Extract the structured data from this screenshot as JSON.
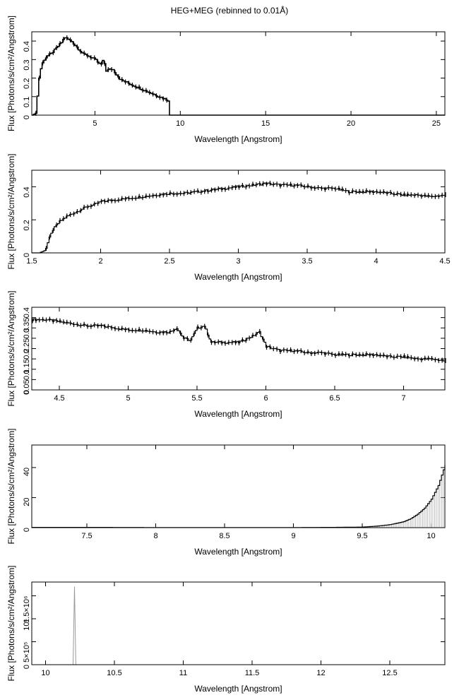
{
  "figure": {
    "title": "HEG+MEG (rebinned to 0.01Å)"
  },
  "chart_data": [
    {
      "type": "line",
      "xlabel": "Wavelength [Angstrom]",
      "ylabel": "Flux [Photons/s/cm²/Angstrom]",
      "xlim": [
        1.3,
        25.5
      ],
      "ylim": [
        0,
        0.45
      ],
      "xticks": [
        5,
        10,
        15,
        20,
        25
      ],
      "xtick_labels": [
        "5",
        "10",
        "15",
        "20",
        "25"
      ],
      "yticks": [
        0,
        0.1,
        0.2,
        0.3,
        0.4
      ],
      "ytick_labels": [
        "0",
        "0.1",
        "0.2",
        "0.3",
        "0.4"
      ],
      "grid": false,
      "series": [
        {
          "x": [
            1.35,
            1.45,
            1.55,
            1.6,
            1.7,
            1.8,
            1.9,
            2.0,
            2.2,
            2.4,
            2.6,
            2.8,
            3.0,
            3.2,
            3.4,
            3.6,
            3.8,
            4.0,
            4.3,
            4.6,
            5.0,
            5.3,
            5.5,
            5.6,
            6.0,
            6.5,
            7.0,
            7.5,
            8.0,
            8.5,
            9.0,
            9.3,
            9.35,
            10.0,
            15.0,
            20.0,
            25.5
          ],
          "y": [
            0.0,
            0.01,
            0.02,
            0.1,
            0.2,
            0.25,
            0.28,
            0.3,
            0.32,
            0.33,
            0.35,
            0.37,
            0.39,
            0.42,
            0.41,
            0.4,
            0.38,
            0.36,
            0.33,
            0.32,
            0.3,
            0.27,
            0.3,
            0.24,
            0.25,
            0.19,
            0.17,
            0.15,
            0.13,
            0.11,
            0.09,
            0.08,
            0.0,
            0.0,
            0.0,
            0.0,
            0.0
          ]
        }
      ]
    },
    {
      "type": "line",
      "xlabel": "Wavelength [Angstrom]",
      "ylabel": "Flux [Photons/s/cm²/Angstrom]",
      "xlim": [
        1.5,
        4.5
      ],
      "ylim": [
        0,
        0.5
      ],
      "xticks": [
        1.5,
        2,
        2.5,
        3,
        3.5,
        4,
        4.5
      ],
      "xtick_labels": [
        "1.5",
        "2",
        "2.5",
        "3",
        "3.5",
        "4",
        "4.5"
      ],
      "yticks": [
        0,
        0.2,
        0.4
      ],
      "ytick_labels": [
        "0",
        "0.2",
        "0.4"
      ],
      "grid": false,
      "series": [
        {
          "x": [
            1.5,
            1.55,
            1.58,
            1.6,
            1.62,
            1.65,
            1.7,
            1.75,
            1.8,
            1.85,
            1.9,
            1.95,
            2.0,
            2.1,
            2.2,
            2.3,
            2.4,
            2.5,
            2.6,
            2.7,
            2.8,
            2.9,
            3.0,
            3.1,
            3.2,
            3.3,
            3.4,
            3.5,
            3.6,
            3.7,
            3.8,
            3.9,
            4.0,
            4.1,
            4.2,
            4.3,
            4.4,
            4.5
          ],
          "y": [
            0.0,
            0.0,
            0.01,
            0.03,
            0.08,
            0.14,
            0.19,
            0.22,
            0.24,
            0.26,
            0.28,
            0.29,
            0.31,
            0.32,
            0.33,
            0.34,
            0.35,
            0.36,
            0.36,
            0.37,
            0.38,
            0.39,
            0.4,
            0.41,
            0.42,
            0.41,
            0.41,
            0.4,
            0.39,
            0.39,
            0.37,
            0.37,
            0.37,
            0.36,
            0.35,
            0.35,
            0.34,
            0.35
          ]
        }
      ]
    },
    {
      "type": "line",
      "xlabel": "Wavelength [Angstrom]",
      "ylabel": "Flux [Photons/s/cm²/Angstrom]",
      "xlim": [
        4.3,
        7.3
      ],
      "ylim": [
        0,
        0.4
      ],
      "xticks": [
        4.5,
        5,
        5.5,
        6,
        6.5,
        7
      ],
      "xtick_labels": [
        "4.5",
        "5",
        "5.5",
        "6",
        "6.5",
        "7"
      ],
      "yticks": [
        0,
        0.05,
        0.1,
        0.15,
        0.2,
        0.25,
        0.3,
        0.35,
        0.4
      ],
      "ytick_labels": [
        "0",
        "0.05",
        "0.1",
        "0.15",
        "0.2",
        "0.25",
        "0.3",
        "0.35",
        "0.4"
      ],
      "grid": false,
      "series": [
        {
          "x": [
            4.3,
            4.4,
            4.5,
            4.6,
            4.7,
            4.8,
            4.9,
            5.0,
            5.1,
            5.2,
            5.3,
            5.35,
            5.4,
            5.45,
            5.5,
            5.55,
            5.6,
            5.7,
            5.8,
            5.9,
            5.95,
            6.0,
            6.1,
            6.2,
            6.3,
            6.4,
            6.5,
            6.6,
            6.7,
            6.8,
            6.9,
            7.0,
            7.1,
            7.2,
            7.3
          ],
          "y": [
            0.34,
            0.34,
            0.33,
            0.32,
            0.31,
            0.31,
            0.3,
            0.29,
            0.29,
            0.28,
            0.28,
            0.3,
            0.25,
            0.24,
            0.3,
            0.31,
            0.23,
            0.23,
            0.23,
            0.26,
            0.28,
            0.21,
            0.19,
            0.19,
            0.18,
            0.18,
            0.17,
            0.17,
            0.17,
            0.17,
            0.16,
            0.16,
            0.15,
            0.15,
            0.14
          ]
        }
      ]
    },
    {
      "type": "line",
      "xlabel": "Wavelength [Angstrom]",
      "ylabel": "Flux [Photons/s/cm²/Angstrom]",
      "xlim": [
        7.1,
        10.1
      ],
      "ylim": [
        0,
        55
      ],
      "xticks": [
        7.5,
        8,
        8.5,
        9,
        9.5,
        10
      ],
      "xtick_labels": [
        "7.5",
        "8",
        "8.5",
        "9",
        "9.5",
        "10"
      ],
      "yticks": [
        0,
        20,
        40
      ],
      "ytick_labels": [
        "0",
        "20",
        "40"
      ],
      "grid": false,
      "series": [
        {
          "x": [
            7.1,
            7.5,
            8.0,
            8.5,
            9.0,
            9.3,
            9.5,
            9.6,
            9.7,
            9.8,
            9.85,
            9.9,
            9.95,
            10.0,
            10.05,
            10.1
          ],
          "y": [
            0.2,
            0.2,
            0.1,
            0.1,
            0.1,
            0.2,
            0.4,
            1,
            2,
            4,
            6,
            9,
            13,
            19,
            28,
            42
          ]
        }
      ]
    },
    {
      "type": "line",
      "xlabel": "Wavelength [Angstrom]",
      "ylabel": "Flux [Photons/s/cm²/Angstrom]",
      "xlim": [
        9.9,
        12.9
      ],
      "ylim": [
        0,
        1800000
      ],
      "xticks": [
        10,
        10.5,
        11,
        11.5,
        12,
        12.5
      ],
      "xtick_labels": [
        "10",
        "10.5",
        "11",
        "11.5",
        "12",
        "12.5"
      ],
      "yticks": [
        0,
        500000,
        1000000,
        1500000
      ],
      "ytick_labels": [
        "0",
        "5×10⁵",
        "10⁶",
        "1.5×10⁶"
      ],
      "grid": false,
      "series": [
        {
          "x": [
            9.9,
            10.2,
            10.21,
            10.22,
            12.9
          ],
          "y": [
            0,
            0,
            1700000,
            0,
            0
          ]
        }
      ]
    }
  ]
}
